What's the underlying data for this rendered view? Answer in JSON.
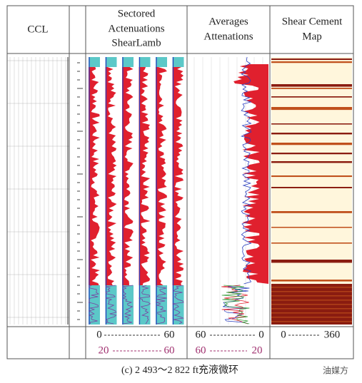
{
  "header": {
    "ccl": "CCL",
    "sectored": [
      "Sectored",
      "Actenuations",
      "ShearLamb"
    ],
    "averages": [
      "Averages",
      "Attenations"
    ],
    "map": [
      "Shear Cement",
      "Map"
    ]
  },
  "footer": {
    "sectored": [
      {
        "left": 0,
        "right": 60
      },
      {
        "left": 20,
        "right": 60
      }
    ],
    "averages": [
      {
        "left": 60,
        "right": 0
      },
      {
        "left": 60,
        "right": 20
      }
    ],
    "map": {
      "left": 0,
      "right": 360
    }
  },
  "caption": "(c) 2 493～2 822 ft充液微环",
  "watermark": "油媒方"
}
